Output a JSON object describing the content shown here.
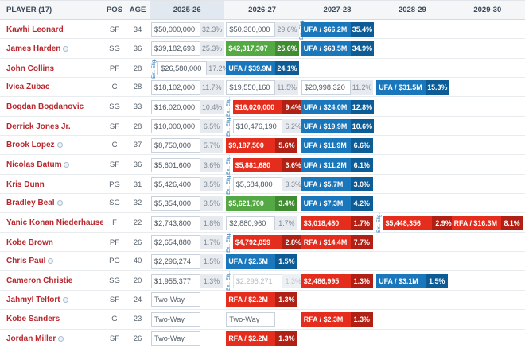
{
  "table": {
    "columns": {
      "player": "PLAYER (17)",
      "pos": "POS",
      "age": "AGE",
      "years": [
        "2025-26",
        "2026-27",
        "2027-28",
        "2028-29",
        "2029-30"
      ],
      "highlighted_year": "2025-26"
    },
    "ext_label": "Ext. Elig.",
    "colors": {
      "player_link": "#b8282e",
      "green": "#55a944",
      "green_dark": "#3f8c31",
      "red": "#e42d1d",
      "red_dark": "#b02014",
      "blue": "#1b77bb",
      "blue_dark": "#0e5c95",
      "ext_label": "#2878b5"
    },
    "rows": [
      {
        "name": "Kawhi Leonard",
        "badge": false,
        "pos": "SF",
        "age": "34",
        "cells": [
          {
            "type": "plain",
            "value": "$50,000,000",
            "pct": "32.3%"
          },
          {
            "type": "plain",
            "value": "$50,300,000",
            "pct": "29.6%",
            "ext": "after"
          },
          {
            "type": "blue",
            "value": "UFA / $66.2M",
            "pct": "35.4%"
          },
          {
            "type": "empty"
          },
          {
            "type": "empty"
          }
        ]
      },
      {
        "name": "James Harden",
        "badge": true,
        "pos": "SG",
        "age": "36",
        "cells": [
          {
            "type": "plain",
            "value": "$39,182,693",
            "pct": "25.3%"
          },
          {
            "type": "green",
            "value": "$42,317,307",
            "pct": "25.6%"
          },
          {
            "type": "blue",
            "value": "UFA / $63.5M",
            "pct": "34.9%"
          },
          {
            "type": "empty"
          },
          {
            "type": "empty"
          }
        ]
      },
      {
        "name": "John Collins",
        "badge": false,
        "pos": "PF",
        "age": "28",
        "cells": [
          {
            "type": "plain",
            "value": "$26,580,000",
            "pct": "17.2%",
            "ext": "before"
          },
          {
            "type": "blue",
            "value": "UFA / $39.9M",
            "pct": "24.1%"
          },
          {
            "type": "empty"
          },
          {
            "type": "empty"
          },
          {
            "type": "empty"
          }
        ]
      },
      {
        "name": "Ivica Zubac",
        "badge": false,
        "pos": "C",
        "age": "28",
        "cells": [
          {
            "type": "plain",
            "value": "$18,102,000",
            "pct": "11.7%"
          },
          {
            "type": "plain",
            "value": "$19,550,160",
            "pct": "11.5%"
          },
          {
            "type": "plain",
            "value": "$20,998,320",
            "pct": "11.2%"
          },
          {
            "type": "blue",
            "value": "UFA / $31.5M",
            "pct": "15.3%"
          },
          {
            "type": "empty"
          }
        ]
      },
      {
        "name": "Bogdan Bogdanovic",
        "badge": false,
        "pos": "SG",
        "age": "33",
        "cells": [
          {
            "type": "plain",
            "value": "$16,020,000",
            "pct": "10.4%"
          },
          {
            "type": "red",
            "value": "$16,020,000",
            "pct": "9.4%",
            "ext": "before"
          },
          {
            "type": "blue",
            "value": "UFA / $24.0M",
            "pct": "12.8%"
          },
          {
            "type": "empty"
          },
          {
            "type": "empty"
          }
        ]
      },
      {
        "name": "Derrick Jones Jr.",
        "badge": false,
        "pos": "SF",
        "age": "28",
        "cells": [
          {
            "type": "plain",
            "value": "$10,000,000",
            "pct": "6.5%"
          },
          {
            "type": "plain",
            "value": "$10,476,190",
            "pct": "6.2%",
            "ext": "before"
          },
          {
            "type": "blue",
            "value": "UFA / $19.9M",
            "pct": "10.6%"
          },
          {
            "type": "empty"
          },
          {
            "type": "empty"
          }
        ]
      },
      {
        "name": "Brook Lopez",
        "badge": true,
        "pos": "C",
        "age": "37",
        "cells": [
          {
            "type": "plain",
            "value": "$8,750,000",
            "pct": "5.7%"
          },
          {
            "type": "red",
            "value": "$9,187,500",
            "pct": "5.6%"
          },
          {
            "type": "blue",
            "value": "UFA / $11.9M",
            "pct": "6.6%"
          },
          {
            "type": "empty"
          },
          {
            "type": "empty"
          }
        ]
      },
      {
        "name": "Nicolas Batum",
        "badge": true,
        "pos": "SF",
        "age": "36",
        "cells": [
          {
            "type": "plain",
            "value": "$5,601,600",
            "pct": "3.6%"
          },
          {
            "type": "red",
            "value": "$5,881,680",
            "pct": "3.6%",
            "ext": "before"
          },
          {
            "type": "blue",
            "value": "UFA / $11.2M",
            "pct": "6.1%"
          },
          {
            "type": "empty"
          },
          {
            "type": "empty"
          }
        ]
      },
      {
        "name": "Kris Dunn",
        "badge": false,
        "pos": "PG",
        "age": "31",
        "cells": [
          {
            "type": "plain",
            "value": "$5,426,400",
            "pct": "3.5%"
          },
          {
            "type": "plain",
            "value": "$5,684,800",
            "pct": "3.3%",
            "ext": "before"
          },
          {
            "type": "blue",
            "value": "UFA / $5.7M",
            "pct": "3.0%"
          },
          {
            "type": "empty"
          },
          {
            "type": "empty"
          }
        ]
      },
      {
        "name": "Bradley Beal",
        "badge": true,
        "pos": "SG",
        "age": "32",
        "cells": [
          {
            "type": "plain",
            "value": "$5,354,000",
            "pct": "3.5%"
          },
          {
            "type": "green",
            "value": "$5,621,700",
            "pct": "3.4%"
          },
          {
            "type": "blue",
            "value": "UFA / $7.3M",
            "pct": "4.2%"
          },
          {
            "type": "empty"
          },
          {
            "type": "empty"
          }
        ]
      },
      {
        "name": "Yanic Konan Niederhauser",
        "badge": false,
        "pos": "F",
        "age": "22",
        "cells": [
          {
            "type": "plain",
            "value": "$2,743,800",
            "pct": "1.8%"
          },
          {
            "type": "plain",
            "value": "$2,880,960",
            "pct": "1.7%"
          },
          {
            "type": "red",
            "value": "$3,018,480",
            "pct": "1.7%"
          },
          {
            "type": "red",
            "value": "$5,448,356",
            "pct": "2.9%",
            "ext": "before"
          },
          {
            "type": "red",
            "value": "RFA / $16.3M",
            "pct": "8.1%"
          }
        ]
      },
      {
        "name": "Kobe Brown",
        "badge": false,
        "pos": "PF",
        "age": "26",
        "cells": [
          {
            "type": "plain",
            "value": "$2,654,880",
            "pct": "1.7%"
          },
          {
            "type": "red",
            "value": "$4,792,059",
            "pct": "2.8%",
            "ext": "before"
          },
          {
            "type": "red",
            "value": "RFA / $14.4M",
            "pct": "7.7%"
          },
          {
            "type": "empty"
          },
          {
            "type": "empty"
          }
        ]
      },
      {
        "name": "Chris Paul",
        "badge": true,
        "pos": "PG",
        "age": "40",
        "cells": [
          {
            "type": "plain",
            "value": "$2,296,274",
            "pct": "1.5%"
          },
          {
            "type": "blue",
            "value": "UFA / $2.5M",
            "pct": "1.5%"
          },
          {
            "type": "empty"
          },
          {
            "type": "empty"
          },
          {
            "type": "empty"
          }
        ]
      },
      {
        "name": "Cameron Christie",
        "badge": false,
        "pos": "SG",
        "age": "20",
        "cells": [
          {
            "type": "plain",
            "value": "$1,955,377",
            "pct": "1.3%"
          },
          {
            "type": "muted",
            "value": "$2,296,271",
            "pct": "1.3%",
            "ext": "before"
          },
          {
            "type": "red",
            "value": "$2,486,995",
            "pct": "1.3%"
          },
          {
            "type": "blue",
            "value": "UFA / $3.1M",
            "pct": "1.5%"
          },
          {
            "type": "empty"
          }
        ]
      },
      {
        "name": "Jahmyl Telfort",
        "badge": true,
        "pos": "SF",
        "age": "24",
        "cells": [
          {
            "type": "twoway",
            "value": "Two-Way"
          },
          {
            "type": "red",
            "value": "RFA / $2.2M",
            "pct": "1.3%"
          },
          {
            "type": "empty"
          },
          {
            "type": "empty"
          },
          {
            "type": "empty"
          }
        ]
      },
      {
        "name": "Kobe Sanders",
        "badge": false,
        "pos": "G",
        "age": "23",
        "cells": [
          {
            "type": "twoway",
            "value": "Two-Way"
          },
          {
            "type": "twoway",
            "value": "Two-Way"
          },
          {
            "type": "red",
            "value": "RFA / $2.3M",
            "pct": "1.3%"
          },
          {
            "type": "empty"
          },
          {
            "type": "empty"
          }
        ]
      },
      {
        "name": "Jordan Miller",
        "badge": true,
        "pos": "SF",
        "age": "26",
        "cells": [
          {
            "type": "twoway",
            "value": "Two-Way"
          },
          {
            "type": "red",
            "value": "RFA / $2.2M",
            "pct": "1.3%"
          },
          {
            "type": "empty"
          },
          {
            "type": "empty"
          },
          {
            "type": "empty"
          }
        ]
      }
    ]
  }
}
